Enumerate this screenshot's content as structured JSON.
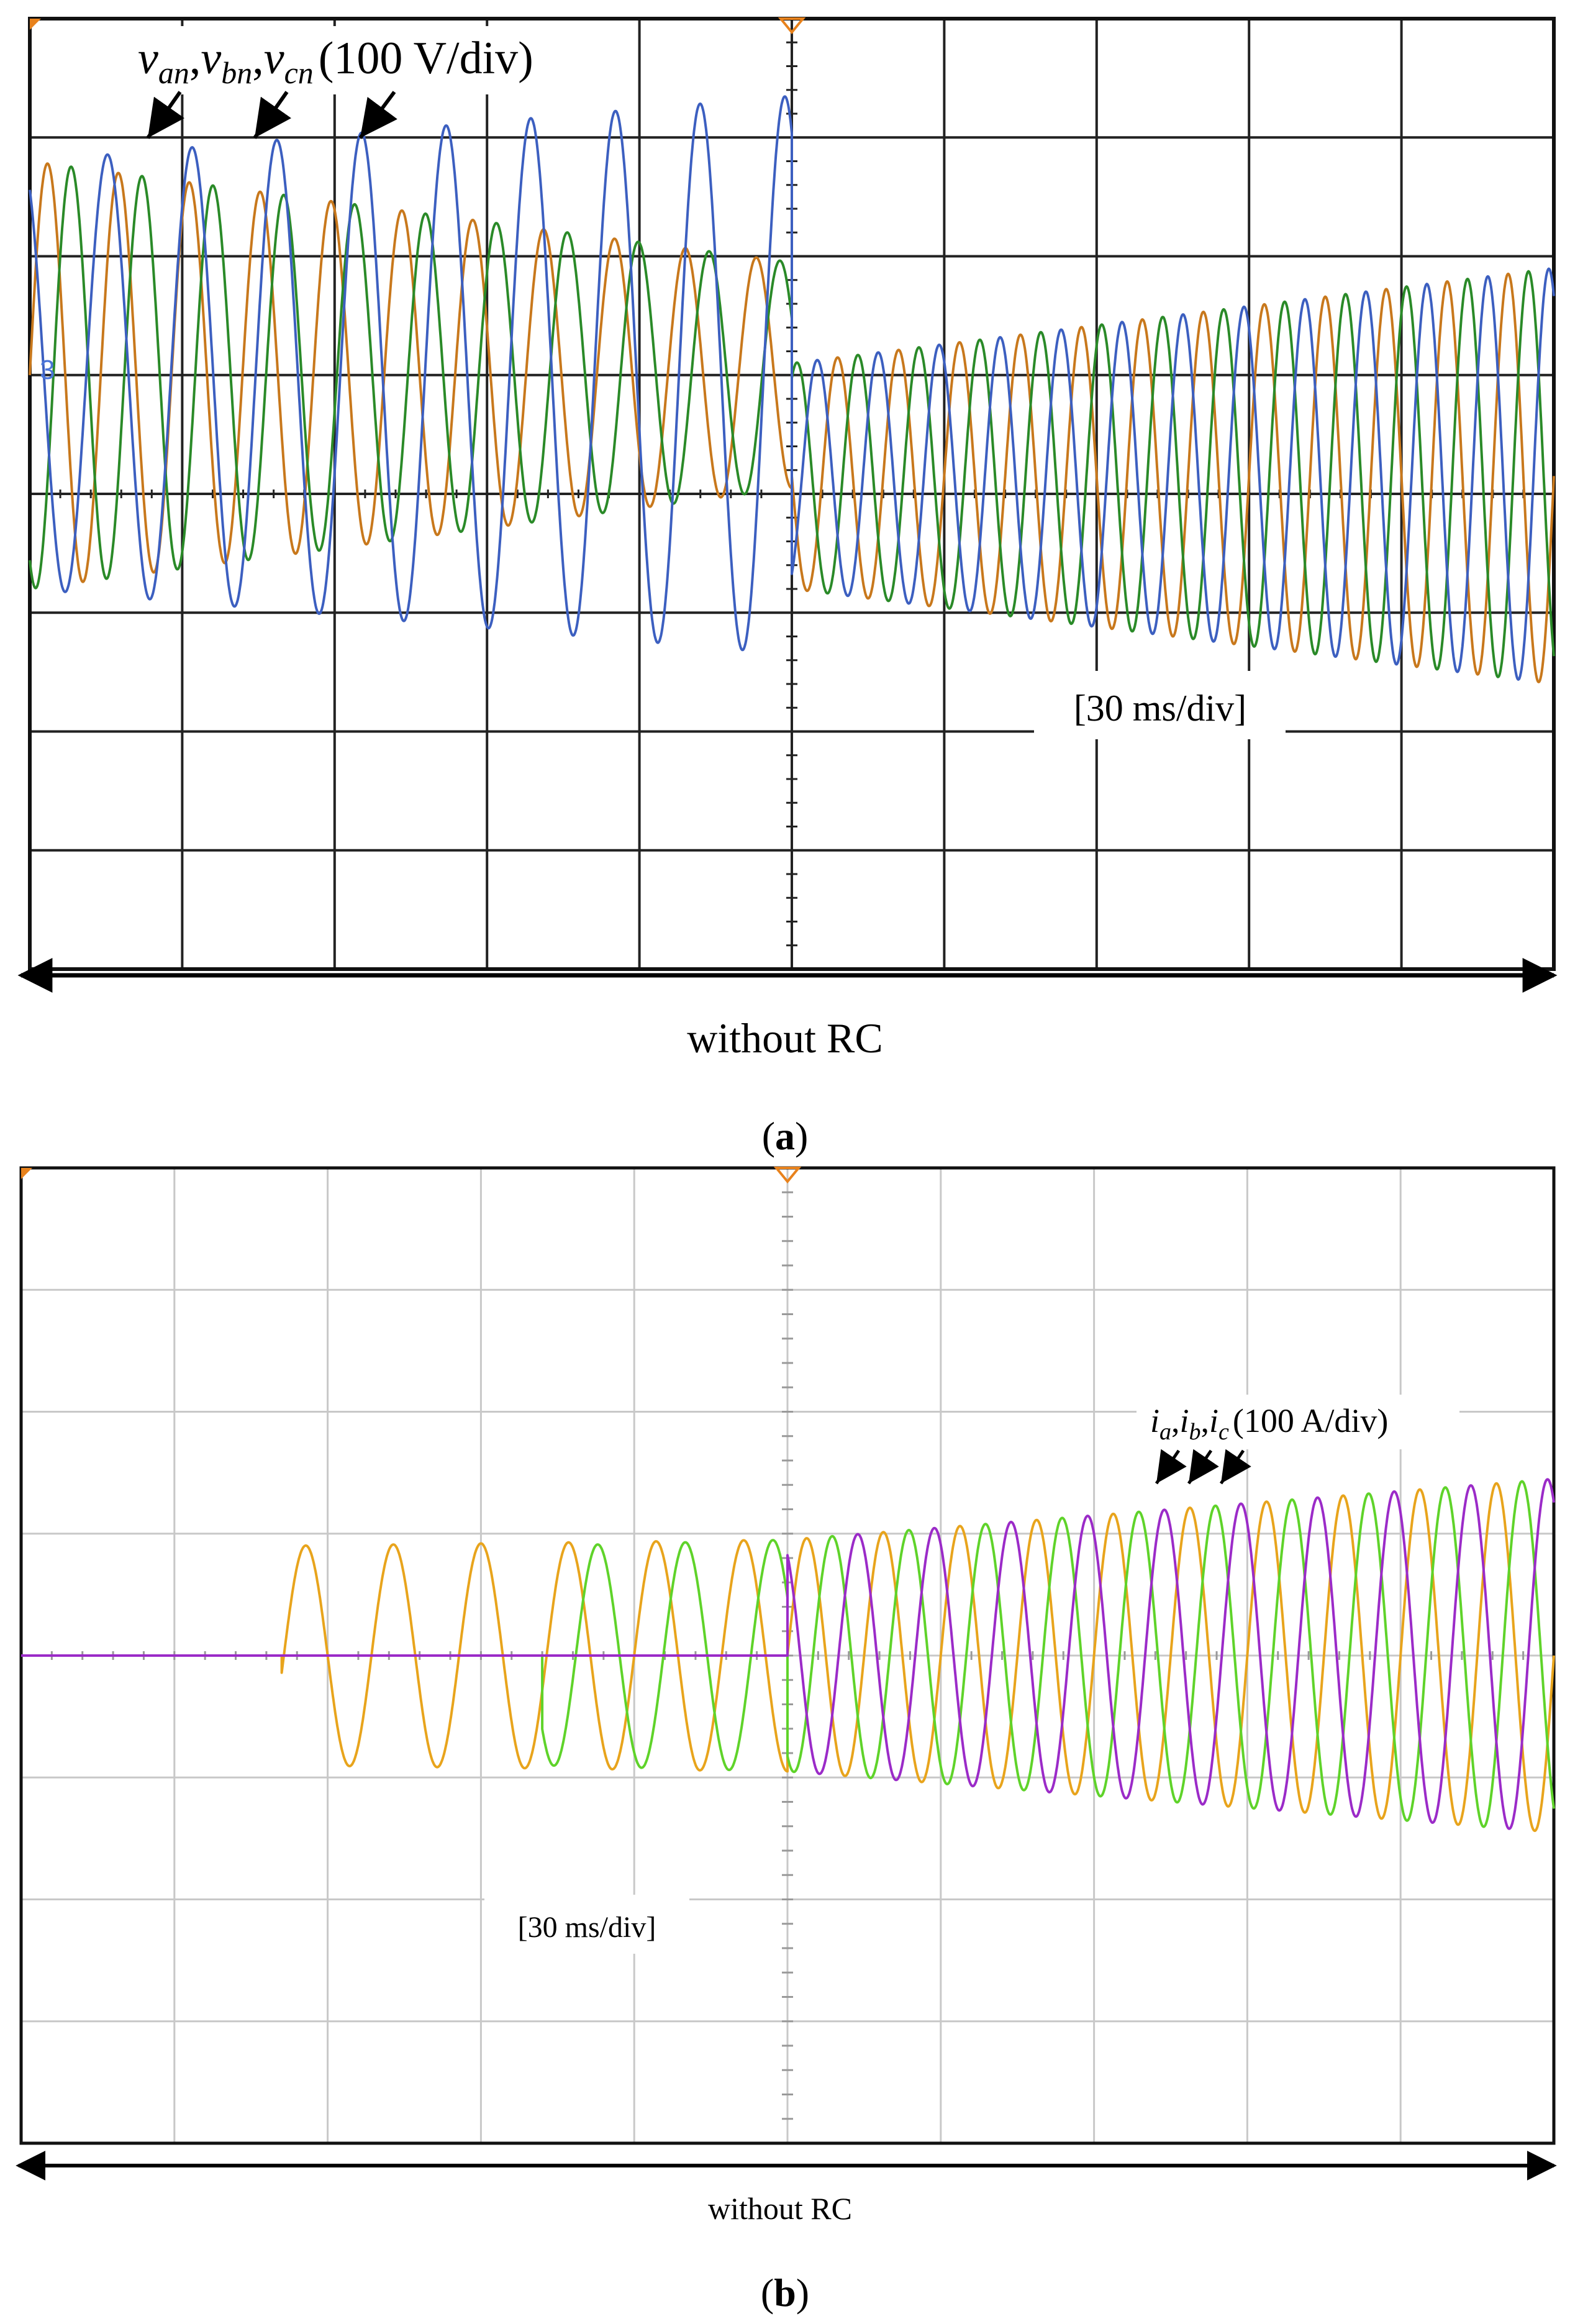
{
  "figure": {
    "panel_a": {
      "label": "a",
      "signal_labels": [
        {
          "base": "v",
          "sub": "an"
        },
        {
          "base": "v",
          "sub": "bn"
        },
        {
          "base": "v",
          "sub": "cn"
        }
      ],
      "scale_text": "(100 V/div)",
      "time_scale": "[30 ms/div]",
      "caption": "without RC",
      "channel_marker": "3"
    },
    "panel_b": {
      "label": "b",
      "signal_labels": [
        {
          "base": "i",
          "sub": "a"
        },
        {
          "base": "i",
          "sub": "b"
        },
        {
          "base": "i",
          "sub": "c"
        }
      ],
      "scale_text": "(100 A/div)",
      "time_scale": "[30 ms/div]",
      "caption": "without RC"
    }
  },
  "chart_data": [
    {
      "type": "line",
      "title": "",
      "xlabel": "[30 ms/div]",
      "ylabel": "(100 V/div)",
      "x_unit": "div (30 ms/div)",
      "y_unit": "div (100 V/div)",
      "xlim": [
        0,
        10
      ],
      "ylim": [
        -4,
        4
      ],
      "grid": true,
      "trigger_x": 5,
      "series": [
        {
          "name": "v_an",
          "color": "#c8781c",
          "phase_deg": 0,
          "segments": [
            {
              "x_start": 0,
              "x_end": 5,
              "freq_cycles_per_div": 2.15,
              "offset": 1.0,
              "amp_start": 1.8,
              "amp_end": 0.95
            },
            {
              "x_start": 5,
              "x_end": 10,
              "freq_cycles_per_div": 2.5,
              "offset": 0.15,
              "amp_start": 0.95,
              "amp_end": 1.75
            }
          ]
        },
        {
          "name": "v_bn",
          "color": "#2a8a28",
          "phase_deg": 120,
          "segments": [
            {
              "x_start": 0,
              "x_end": 5,
              "freq_cycles_per_div": 2.15,
              "offset": 1.0,
              "amp_start": 1.8,
              "amp_end": 0.95
            },
            {
              "x_start": 5,
              "x_end": 10,
              "freq_cycles_per_div": 2.5,
              "offset": 0.15,
              "amp_start": 0.95,
              "amp_end": 1.75
            }
          ]
        },
        {
          "name": "v_cn",
          "color": "#3c5fc0",
          "phase_deg": 240,
          "segments": [
            {
              "x_start": 0,
              "x_end": 5,
              "freq_cycles_per_div": 1.8,
              "offset": 1.0,
              "amp_start": 1.8,
              "amp_end": 2.35
            },
            {
              "x_start": 5,
              "x_end": 10,
              "freq_cycles_per_div": 2.5,
              "offset": 0.15,
              "amp_start": 0.95,
              "amp_end": 1.75
            }
          ]
        }
      ]
    },
    {
      "type": "line",
      "title": "",
      "xlabel": "[30 ms/div]",
      "ylabel": "(100 A/div)",
      "x_unit": "div (30 ms/div)",
      "y_unit": "div (100 A/div)",
      "xlim": [
        0,
        10
      ],
      "ylim": [
        -4,
        4
      ],
      "grid": true,
      "trigger_x": 5,
      "series": [
        {
          "name": "i_a",
          "color": "#e8a41c",
          "phase_deg": 0,
          "segments": [
            {
              "x_start": 0,
              "x_end": 1.7,
              "freq_cycles_per_div": 0,
              "offset": 0,
              "amp_start": 0,
              "amp_end": 0
            },
            {
              "x_start": 1.7,
              "x_end": 5,
              "freq_cycles_per_div": 1.75,
              "offset": 0,
              "amp_start": 0.9,
              "amp_end": 0.95
            },
            {
              "x_start": 5,
              "x_end": 10,
              "freq_cycles_per_div": 2.0,
              "offset": 0,
              "amp_start": 0.95,
              "amp_end": 1.45
            }
          ]
        },
        {
          "name": "i_b",
          "color": "#5fd32a",
          "phase_deg": 120,
          "segments": [
            {
              "x_start": 0,
              "x_end": 3.4,
              "freq_cycles_per_div": 0,
              "offset": 0,
              "amp_start": 0,
              "amp_end": 0
            },
            {
              "x_start": 3.4,
              "x_end": 5,
              "freq_cycles_per_div": 1.75,
              "offset": 0,
              "amp_start": 0.9,
              "amp_end": 0.95
            },
            {
              "x_start": 5,
              "x_end": 10,
              "freq_cycles_per_div": 2.0,
              "offset": 0,
              "amp_start": 0.95,
              "amp_end": 1.45
            }
          ]
        },
        {
          "name": "i_c",
          "color": "#9b2bc8",
          "phase_deg": 240,
          "segments": [
            {
              "x_start": 0,
              "x_end": 5,
              "freq_cycles_per_div": 0,
              "offset": 0,
              "amp_start": 0,
              "amp_end": 0
            },
            {
              "x_start": 5,
              "x_end": 10,
              "freq_cycles_per_div": 2.0,
              "offset": 0,
              "amp_start": 0.95,
              "amp_end": 1.45
            }
          ]
        }
      ]
    }
  ]
}
